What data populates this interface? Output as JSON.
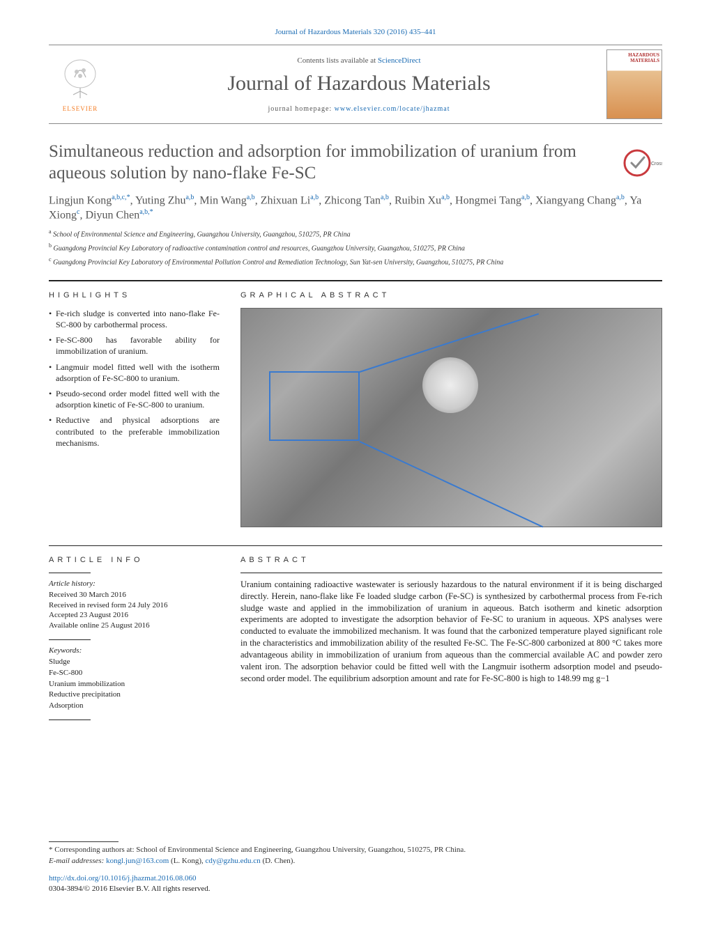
{
  "citation": "Journal of Hazardous Materials 320 (2016) 435–441",
  "masthead": {
    "publisher": "ELSEVIER",
    "contents_prefix": "Contents lists available at ",
    "contents_link": "ScienceDirect",
    "journal_name": "Journal of Hazardous Materials",
    "homepage_label": "journal homepage: ",
    "homepage_url": "www.elsevier.com/locate/jhazmat",
    "cover_text": "HAZARDOUS\nMATERIALS"
  },
  "article": {
    "title": "Simultaneous reduction and adsorption for immobilization of uranium from aqueous solution by nano-flake Fe-SC",
    "crossmark_label": "CrossMark",
    "authors_html": "Lingjun Kong<sup>a,b,c,*</sup>, Yuting Zhu<sup>a,b</sup>, Min Wang<sup>a,b</sup>, Zhixuan Li<sup>a,b</sup>, Zhicong Tan<sup>a,b</sup>, Ruibin Xu<sup>a,b</sup>, Hongmei Tang<sup>a,b</sup>, Xiangyang Chang<sup>a,b</sup>, Ya Xiong<sup>c</sup>, Diyun Chen<sup>a,b,*</sup>",
    "affiliations": [
      {
        "label": "a",
        "text": "School of Environmental Science and Engineering, Guangzhou University, Guangzhou, 510275, PR China"
      },
      {
        "label": "b",
        "text": "Guangdong Provincial Key Laboratory of radioactive contamination control and resources, Guangzhou University, Guangzhou, 510275, PR China"
      },
      {
        "label": "c",
        "text": "Guangdong Provincial Key Laboratory of Environmental Pollution Control and Remediation Technology, Sun Yat-sen University, Guangzhou, 510275, PR China"
      }
    ]
  },
  "highlights": {
    "heading": "HIGHLIGHTS",
    "items": [
      "Fe-rich sludge is converted into nano-flake Fe-SC-800 by carbothermal process.",
      "Fe-SC-800 has favorable ability for immobilization of uranium.",
      "Langmuir model fitted well with the isotherm adsorption of Fe-SC-800 to uranium.",
      "Pseudo-second order model fitted well with the adsorption kinetic of Fe-SC-800 to uranium.",
      "Reductive and physical adsorptions are contributed to the preferable immobilization mechanisms."
    ]
  },
  "graphical_abstract": {
    "heading": "GRAPHICAL ABSTRACT"
  },
  "article_info": {
    "heading": "ARTICLE INFO",
    "history_label": "Article history:",
    "history": [
      "Received 30 March 2016",
      "Received in revised form 24 July 2016",
      "Accepted 23 August 2016",
      "Available online 25 August 2016"
    ],
    "keywords_label": "Keywords:",
    "keywords": [
      "Sludge",
      "Fe-SC-800",
      "Uranium immobilization",
      "Reductive precipitation",
      "Adsorption"
    ]
  },
  "abstract": {
    "heading": "ABSTRACT",
    "text": "Uranium containing radioactive wastewater is seriously hazardous to the natural environment if it is being discharged directly. Herein, nano-flake like Fe loaded sludge carbon (Fe-SC) is synthesized by carbothermal process from Fe-rich sludge waste and applied in the immobilization of uranium in aqueous. Batch isotherm and kinetic adsorption experiments are adopted to investigate the adsorption behavior of Fe-SC to uranium in aqueous. XPS analyses were conducted to evaluate the immobilized mechanism. It was found that the carbonized temperature played significant role in the characteristics and immobilization ability of the resulted Fe-SC. The Fe-SC-800 carbonized at 800 °C takes more advantageous ability in immobilization of uranium from aqueous than the commercial available AC and powder zero valent iron. The adsorption behavior could be fitted well with the Langmuir isotherm adsorption model and pseudo-second order model. The equilibrium adsorption amount and rate for Fe-SC-800 is high to 148.99 mg g−1"
  },
  "footnotes": {
    "corresponding": "Corresponding authors at: School of Environmental Science and Engineering, Guangzhou University, Guangzhou, 510275, PR China.",
    "email_label": "E-mail addresses:",
    "emails": [
      {
        "addr": "kongl.jun@163.com",
        "who": "(L. Kong)"
      },
      {
        "addr": "cdy@gzhu.edu.cn",
        "who": "(D. Chen)"
      }
    ]
  },
  "doi": {
    "url": "http://dx.doi.org/10.1016/j.jhazmat.2016.08.060",
    "issn_line": "0304-3894/© 2016 Elsevier B.V. All rights reserved."
  },
  "colors": {
    "link": "#1a6bb3",
    "heading": "#585858",
    "orange": "#f47a20"
  }
}
